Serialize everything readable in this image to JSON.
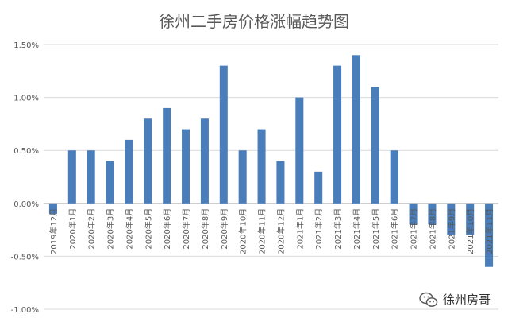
{
  "chart_data": {
    "type": "bar",
    "title": "徐州二手房价格涨幅趋势图",
    "categories": [
      "2019年12月",
      "2020年1月",
      "2020年2月",
      "2020年3月",
      "2020年4月",
      "2020年5月",
      "2020年6月",
      "2020年7月",
      "2020年8月",
      "2020年9月",
      "2020年10月",
      "2020年11月",
      "2020年12月",
      "2021年1月",
      "2021年2月",
      "2021年3月",
      "2021年4月",
      "2021年5月",
      "2021年6月",
      "2021年7月",
      "2021年8月",
      "2021年9月",
      "2021年10月",
      "2021年11月"
    ],
    "values": [
      -0.1,
      0.5,
      0.5,
      0.4,
      0.6,
      0.8,
      0.9,
      0.7,
      0.8,
      1.3,
      0.5,
      0.7,
      0.4,
      1.0,
      0.3,
      1.3,
      1.4,
      1.1,
      0.5,
      -0.2,
      -0.2,
      -0.3,
      -0.3,
      -0.6
    ],
    "unit": "%",
    "ylim": [
      -1.0,
      1.5
    ],
    "yticks": [
      "1.50%",
      "1.00%",
      "0.50%",
      "0.00%",
      "-0.50%",
      "-1.00%"
    ],
    "ytick_values": [
      1.5,
      1.0,
      0.5,
      0.0,
      -0.5,
      -1.0
    ],
    "grid": true,
    "bar_color": "#4a7ebb"
  },
  "watermark": {
    "text": "徐州房哥",
    "icon": "wechat-icon"
  }
}
